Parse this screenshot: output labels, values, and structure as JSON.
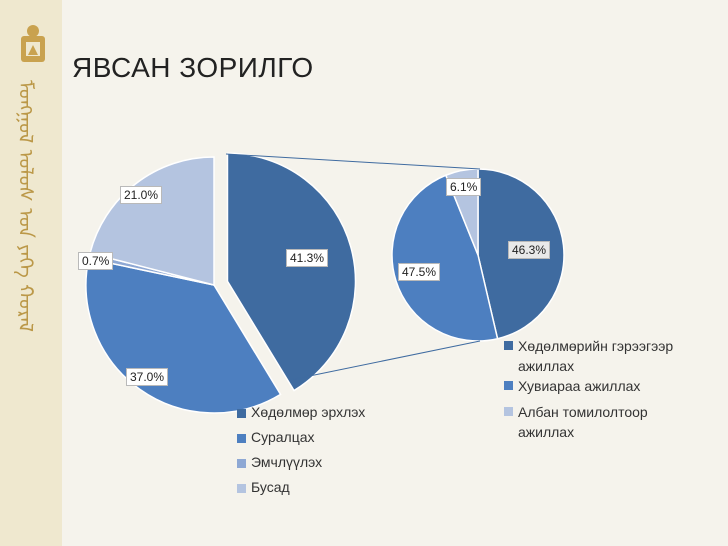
{
  "slide": {
    "title": "ЯВСАН ЗОРИЛГО",
    "sidebar_text": "ᠮᠣᠩᠭᠣᠯ ᠤᠯᠤᠰ ᠤᠨ ᠶᠡᠬᠡ ᠬᠤᠷᠠᠯ"
  },
  "colors": {
    "blue_dark": "#3f6ba0",
    "blue_mid": "#4d7fc0",
    "blue_light": "#8ea8d4",
    "blue_pale": "#b4c4e0",
    "sidebar": "#efe8cf",
    "background": "#f5f3ec"
  },
  "chart_data": [
    {
      "type": "pie",
      "title": "",
      "labels": [
        "Хөдөлмөр эрхлэх",
        "Суралцах",
        "Эмчлүүлэх",
        "Бусад"
      ],
      "values": [
        41.3,
        37.0,
        0.7,
        21.0
      ],
      "value_labels": [
        "41.3%",
        "37.0%",
        "0.7%",
        "21.0%"
      ],
      "legend_position": "bottom-right"
    },
    {
      "type": "pie",
      "title": "",
      "labels": [
        "Хөдөлмөрийн гэрээгээр ажиллах",
        "Хувиараа ажиллах",
        "Албан томилолтоор ажиллах"
      ],
      "values": [
        46.3,
        47.5,
        6.1
      ],
      "value_labels": [
        "46.3%",
        "47.5%",
        "6.1%"
      ],
      "legend_position": "bottom"
    }
  ]
}
